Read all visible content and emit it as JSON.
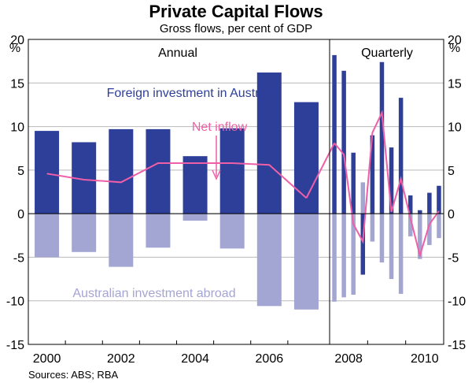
{
  "chart_data": {
    "type": "bar",
    "title": "Private Capital Flows",
    "subtitle": "Gross flows, per cent of GDP",
    "y_unit_left": "%",
    "y_unit_right": "%",
    "ylim": [
      -15,
      20
    ],
    "y_ticks": [
      "-15",
      "-10",
      "-5",
      "0",
      "5",
      "10",
      "15",
      "20"
    ],
    "y_tick_values": [
      -15,
      -10,
      -5,
      0,
      5,
      10,
      15,
      20
    ],
    "grid": true,
    "panels": [
      "Annual",
      "Quarterly"
    ],
    "x_tick_labels": [
      "2000",
      "2002",
      "2004",
      "2006",
      "2008",
      "2010"
    ],
    "source": "Sources: ABS; RBA",
    "annotations": {
      "foreign": "Foreign investment in Australia",
      "net": "Net inflow",
      "abroad": "Australian investment abroad"
    },
    "colors": {
      "foreign": "#2e3f9a",
      "abroad": "#a3a5d3",
      "net": "#ee5fa7",
      "grid": "#b9b9b9"
    },
    "annual": {
      "x": [
        "2000",
        "2001",
        "2002",
        "2003",
        "2004",
        "2005",
        "2006",
        "2007"
      ],
      "series": [
        {
          "name": "Foreign investment in Australia",
          "values": [
            9.5,
            8.2,
            9.7,
            9.7,
            6.6,
            9.8,
            16.2,
            12.8
          ]
        },
        {
          "name": "Australian investment abroad",
          "values": [
            -5.0,
            -4.4,
            -6.1,
            -3.9,
            -0.8,
            -4.0,
            -10.6,
            -11.0
          ]
        },
        {
          "name": "Net inflow",
          "values": [
            4.6,
            3.9,
            3.6,
            5.8,
            5.8,
            5.8,
            5.6,
            1.8
          ]
        }
      ]
    },
    "quarterly": {
      "x": [
        "2008 Q1",
        "2008 Q2",
        "2008 Q3",
        "2008 Q4",
        "2009 Q1",
        "2009 Q2",
        "2009 Q3",
        "2009 Q4",
        "2010 Q1",
        "2010 Q2",
        "2010 Q3",
        "2010 Q4"
      ],
      "series": [
        {
          "name": "Foreign investment in Australia",
          "values": [
            18.2,
            16.4,
            7.0,
            -7.0,
            9.0,
            17.4,
            7.6,
            13.3,
            2.1,
            0.4,
            2.4,
            3.2
          ]
        },
        {
          "name": "Australian investment abroad",
          "values": [
            -10.1,
            -9.6,
            -9.3,
            3.6,
            -3.2,
            -5.6,
            -7.5,
            -9.2,
            -2.6,
            -5.2,
            -3.6,
            -2.8
          ]
        },
        {
          "name": "Net inflow",
          "values": [
            8.1,
            6.8,
            -1.2,
            -3.2,
            9.3,
            11.6,
            0.2,
            4.0,
            -0.5,
            -4.8,
            -1.2,
            0.3
          ]
        }
      ]
    }
  }
}
